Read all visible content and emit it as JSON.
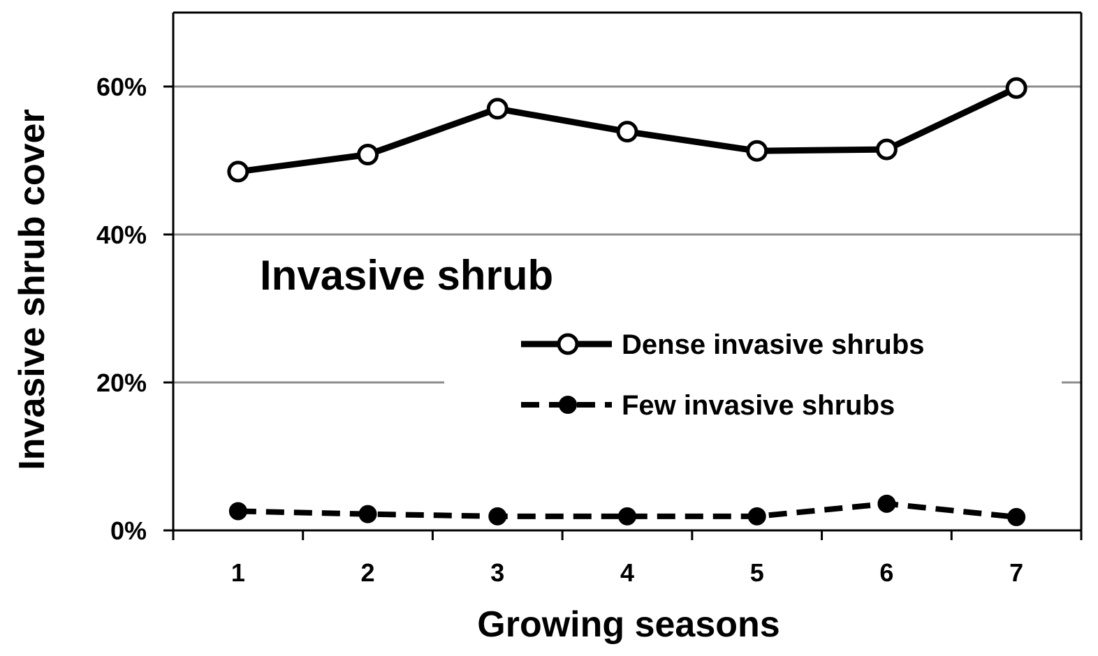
{
  "chart_data": {
    "type": "line",
    "title": "",
    "annotation": "Invasive shrub",
    "xlabel": "Growing seasons",
    "ylabel": "Invasive shrub cover",
    "x": [
      1,
      2,
      3,
      4,
      5,
      6,
      7
    ],
    "x_tick_labels": [
      "1",
      "2",
      "3",
      "4",
      "5",
      "6",
      "7"
    ],
    "ylim": [
      0,
      70
    ],
    "y_ticks": [
      0,
      20,
      40,
      60
    ],
    "y_tick_labels": [
      "0%",
      "20%",
      "40%",
      "60%"
    ],
    "grid": true,
    "legend_position": "center-right",
    "series": [
      {
        "name": "Dense invasive shrubs",
        "values": [
          48.5,
          50.8,
          57.0,
          53.9,
          51.3,
          51.5,
          59.8
        ],
        "line_style": "solid",
        "marker": "open-circle",
        "color": "#000000"
      },
      {
        "name": "Few invasive shrubs",
        "values": [
          2.6,
          2.2,
          1.9,
          1.9,
          1.9,
          3.6,
          1.8
        ],
        "line_style": "dashed",
        "marker": "filled-circle",
        "color": "#000000"
      }
    ],
    "colors": {
      "grid": "#8c8c8c",
      "axis": "#000000",
      "background": "#ffffff"
    }
  }
}
